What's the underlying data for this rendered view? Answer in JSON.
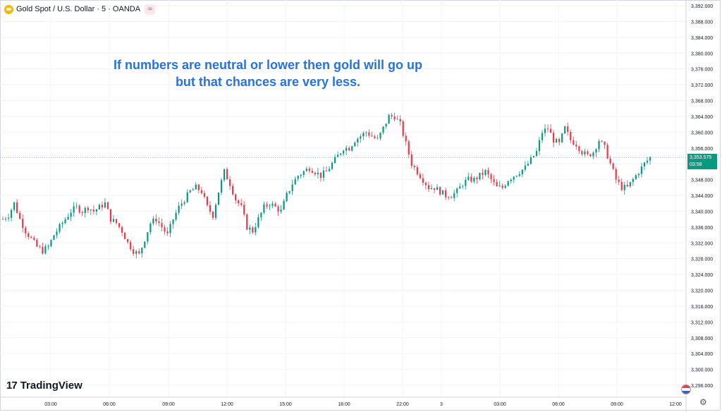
{
  "header": {
    "symbol": "Gold Spot / U.S. Dollar · 5 · OANDA",
    "gold_icon": "gold-coin-icon",
    "menu_icon": "≈"
  },
  "annotation": {
    "line1": "If numbers are neutral or lower then gold will go up",
    "line2": "but that chances are very less."
  },
  "branding": {
    "logo_mark": "17",
    "logo_text": "TradingView"
  },
  "price_tag": {
    "price": "3,353.575",
    "countdown": "03:58"
  },
  "colors": {
    "up": "#089981",
    "down": "#f23645",
    "grid": "#f0f3fa",
    "annotation": "#2a72d8",
    "axis_text": "#131722"
  },
  "chart_data": {
    "type": "candlestick",
    "instrument": "Gold Spot / U.S. Dollar",
    "timeframe": "5",
    "source": "OANDA",
    "ylim": [
      3294,
      3393
    ],
    "y_ticks": [
      "3,392.000",
      "3,388.000",
      "3,384.000",
      "3,380.000",
      "3,376.000",
      "3,372.000",
      "3,368.000",
      "3,364.000",
      "3,360.000",
      "3,356.000",
      "3,352.000",
      "3,348.000",
      "3,344.000",
      "3,340.000",
      "3,336.000",
      "3,332.000",
      "3,328.000",
      "3,324.000",
      "3,320.000",
      "3,316.000",
      "3,312.000",
      "3,308.000",
      "3,304.000",
      "3,300.000",
      "3,296.000"
    ],
    "x_ticks": [
      "03:00",
      "06:00",
      "09:00",
      "12:00",
      "15:00",
      "18:00",
      "22:00",
      "3",
      "03:00",
      "06:00",
      "09:00",
      "12:00"
    ],
    "last_price": 3353.575,
    "path_points": [
      [
        0,
        3338
      ],
      [
        5,
        3339
      ],
      [
        10,
        3342
      ],
      [
        15,
        3338
      ],
      [
        20,
        3335
      ],
      [
        25,
        3333
      ],
      [
        30,
        3331
      ],
      [
        35,
        3330
      ],
      [
        40,
        3331
      ],
      [
        45,
        3334
      ],
      [
        50,
        3336
      ],
      [
        55,
        3338
      ],
      [
        60,
        3340
      ],
      [
        65,
        3341
      ],
      [
        70,
        3340
      ],
      [
        75,
        3341
      ],
      [
        80,
        3340
      ],
      [
        85,
        3341
      ],
      [
        90,
        3342
      ],
      [
        95,
        3338
      ],
      [
        100,
        3337
      ],
      [
        105,
        3335
      ],
      [
        110,
        3332
      ],
      [
        115,
        3330
      ],
      [
        120,
        3329
      ],
      [
        125,
        3333
      ],
      [
        130,
        3337
      ],
      [
        135,
        3338
      ],
      [
        140,
        3336
      ],
      [
        145,
        3334
      ],
      [
        150,
        3338
      ],
      [
        155,
        3341
      ],
      [
        160,
        3343
      ],
      [
        165,
        3345
      ],
      [
        170,
        3346
      ],
      [
        175,
        3345
      ],
      [
        180,
        3341
      ],
      [
        185,
        3339
      ],
      [
        190,
        3345
      ],
      [
        195,
        3350
      ],
      [
        200,
        3347
      ],
      [
        205,
        3343
      ],
      [
        210,
        3341
      ],
      [
        215,
        3336
      ],
      [
        220,
        3335
      ],
      [
        225,
        3338
      ],
      [
        230,
        3341
      ],
      [
        235,
        3342
      ],
      [
        240,
        3341
      ],
      [
        245,
        3340
      ],
      [
        250,
        3344
      ],
      [
        255,
        3347
      ],
      [
        260,
        3349
      ],
      [
        265,
        3350
      ],
      [
        270,
        3351
      ],
      [
        275,
        3350
      ],
      [
        280,
        3349
      ],
      [
        285,
        3350
      ],
      [
        290,
        3352
      ],
      [
        295,
        3354
      ],
      [
        300,
        3356
      ],
      [
        305,
        3356
      ],
      [
        310,
        3358
      ],
      [
        315,
        3359
      ],
      [
        320,
        3360
      ],
      [
        325,
        3359
      ],
      [
        330,
        3358
      ],
      [
        335,
        3361
      ],
      [
        340,
        3364
      ],
      [
        345,
        3364
      ],
      [
        350,
        3362
      ],
      [
        355,
        3357
      ],
      [
        360,
        3352
      ],
      [
        365,
        3350
      ],
      [
        370,
        3348
      ],
      [
        375,
        3346
      ],
      [
        380,
        3346
      ],
      [
        385,
        3345
      ],
      [
        390,
        3344
      ],
      [
        395,
        3344
      ],
      [
        400,
        3345
      ],
      [
        405,
        3347
      ],
      [
        410,
        3348
      ],
      [
        415,
        3348
      ],
      [
        420,
        3349
      ],
      [
        425,
        3350
      ],
      [
        430,
        3348
      ],
      [
        435,
        3346
      ],
      [
        440,
        3346
      ],
      [
        445,
        3348
      ],
      [
        450,
        3349
      ],
      [
        455,
        3350
      ],
      [
        460,
        3351
      ],
      [
        465,
        3353
      ],
      [
        470,
        3355
      ],
      [
        475,
        3360
      ],
      [
        480,
        3361
      ],
      [
        485,
        3358
      ],
      [
        490,
        3357
      ],
      [
        495,
        3361
      ],
      [
        500,
        3358
      ],
      [
        505,
        3357
      ],
      [
        510,
        3355
      ],
      [
        515,
        3354
      ],
      [
        520,
        3355
      ],
      [
        525,
        3358
      ],
      [
        530,
        3356
      ],
      [
        535,
        3352
      ],
      [
        540,
        3348
      ],
      [
        545,
        3346
      ],
      [
        550,
        3346
      ],
      [
        555,
        3348
      ],
      [
        560,
        3350
      ],
      [
        565,
        3352
      ],
      [
        570,
        3353.575
      ]
    ],
    "x_range": [
      0,
      570
    ]
  }
}
